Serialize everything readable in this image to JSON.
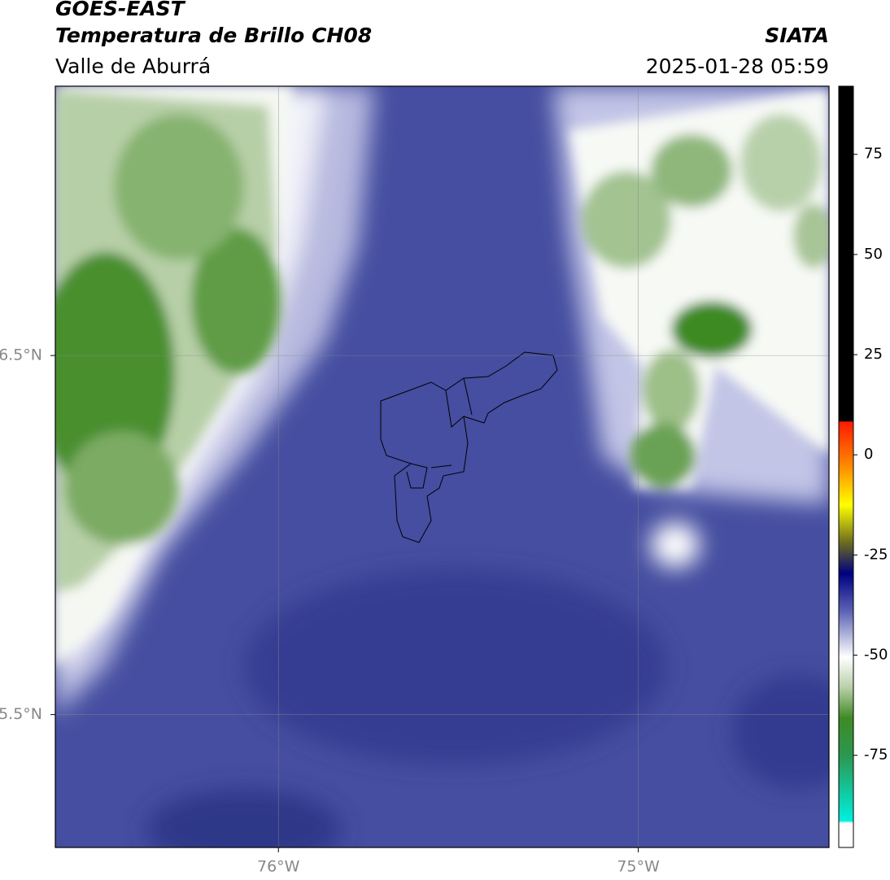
{
  "header": {
    "title": "GOES-EAST",
    "subtitle": "Temperatura de Brillo CH08",
    "region": "Valle de Aburrá",
    "source": "SIATA",
    "datetime": "2025-01-28 05:59"
  },
  "map": {
    "lonlim": [
      -76.62,
      -74.47
    ],
    "latlim": [
      5.13,
      7.25
    ],
    "lonticks": [
      {
        "value": -76,
        "label": "76°W"
      },
      {
        "value": -75,
        "label": "75°W"
      }
    ],
    "latticks": [
      {
        "value": 6.5,
        "label": "6.5°N"
      },
      {
        "value": 5.5,
        "label": "5.5°N"
      }
    ],
    "grid": true
  },
  "colorbar": {
    "lim": [
      -98,
      92
    ],
    "ticks": [
      75,
      50,
      25,
      0,
      -25,
      -50,
      -75
    ]
  }
}
